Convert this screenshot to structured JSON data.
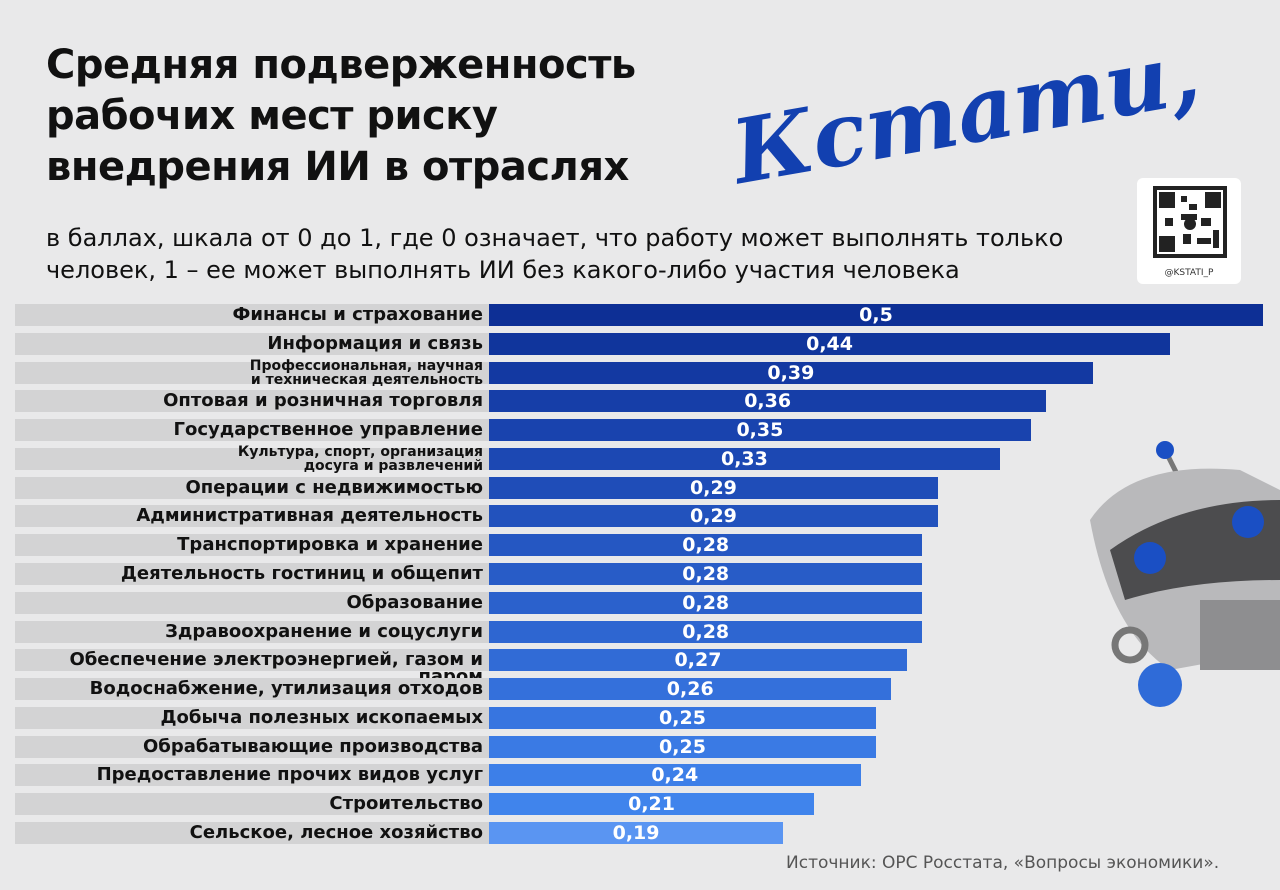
{
  "chart_data": {
    "type": "hbar",
    "title": "Средняя подверженность\nрабочих мест риску\nвнедрения ИИ в отраслях",
    "subtitle": "в баллах, шкала от 0 до 1, где 0 означает, что работу может выполнять только\nчеловек, 1 – ее может выполнять ИИ без какого-либо участия человека",
    "brand": "Кстати,",
    "qr_label": "@KSTATI_P",
    "source": "Источник: ОРС Росстата, «Вопросы экономики».",
    "categories": [
      "Финансы и страхование",
      "Информация и связь",
      "Профессиональная, научная\nи техническая деятельность",
      "Оптовая и розничная торговля",
      "Государственное управление",
      "Культура, спорт, организация\nдосуга и развлечений",
      "Операции с недвижимостью",
      "Административная деятельность",
      "Транспортировка и хранение",
      "Деятельность гостиниц и общепит",
      "Образование",
      "Здравоохранение и соцуслуги",
      "Обеспечение электроэнергией, газом и паром",
      "Водоснабжение, утилизация отходов",
      "Добыча полезных ископаемых",
      "Обрабатывающие производства",
      "Предоставление прочих видов услуг",
      "Строительство",
      "Сельское, лесное хозяйство"
    ],
    "values": [
      0.5,
      0.44,
      0.39,
      0.36,
      0.35,
      0.33,
      0.29,
      0.29,
      0.28,
      0.28,
      0.28,
      0.28,
      0.27,
      0.26,
      0.25,
      0.25,
      0.24,
      0.21,
      0.19
    ],
    "value_labels": [
      "0,5",
      "0,44",
      "0,39",
      "0,36",
      "0,35",
      "0,33",
      "0,29",
      "0,29",
      "0,28",
      "0,28",
      "0,28",
      "0,28",
      "0,27",
      "0,26",
      "0,25",
      "0,25",
      "0,24",
      "0,21",
      "0,19"
    ],
    "colors": [
      "#0d2f95",
      "#10359c",
      "#1339a2",
      "#163ea8",
      "#1943ae",
      "#1c48b3",
      "#1f4db8",
      "#2252bd",
      "#2557c2",
      "#285cc7",
      "#2b61cc",
      "#2e66d1",
      "#316bd6",
      "#3470db",
      "#3775e0",
      "#3a7ae4",
      "#3d7fe8",
      "#4084ec",
      "#5a95f2"
    ]
  }
}
